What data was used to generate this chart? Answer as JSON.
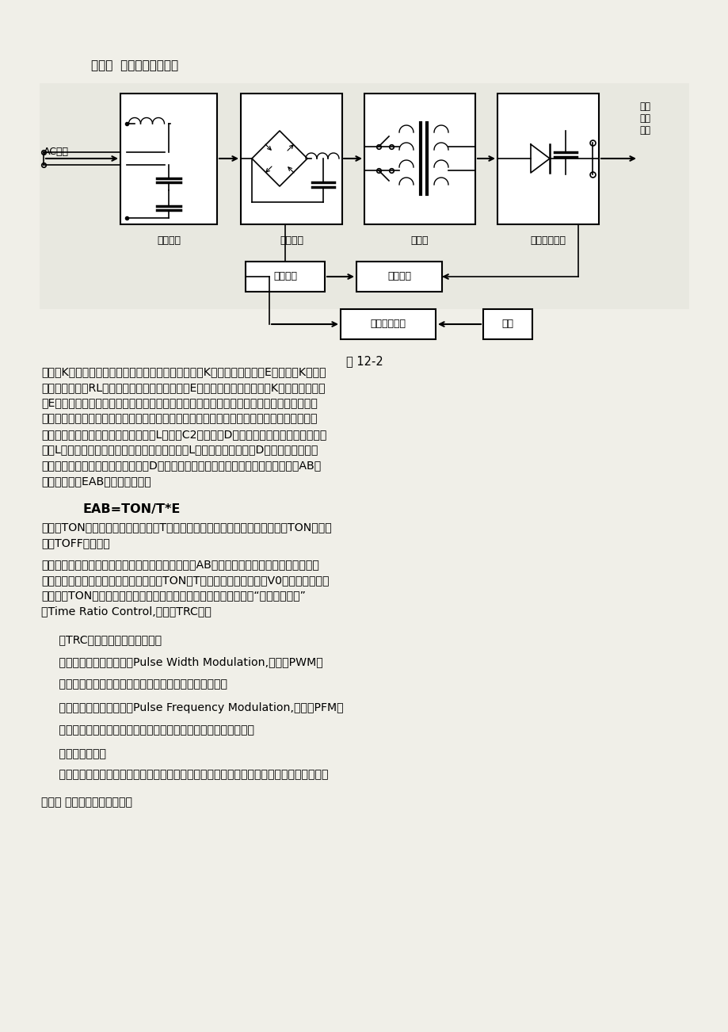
{
  "page_bg": "#f5f5f0",
  "title": "第二节  开关控制稳压原理",
  "figure_label": "图 12-2",
  "formula_text": "EAB=TON/T*E",
  "trc_intro": "     按TRC控制原理，有三种方式：",
  "item1_title": "     （一）、脉冲宽度调制（Pulse Width Modulation,缩写为PWM）",
  "item1_desc": "     开关周期恒定，通过改变脉冲宽度来改变占空比的方式。",
  "item2_title": "     （二）、脉冲频率调制（Pulse Frequency Modulation,缩写为PFM）",
  "item2_desc": "     导通脉冲宽度恒定，通过改变开关工作频率来改变占空比的方式。",
  "item3_title": "     （三）混合调制",
  "item3_desc": "     导通脉冲宽度和开关工作频率均不固定，彼此都能改变的方式，它是以上二种方式的混合。",
  "last_line": "第三节 开关电源的发展和趋势",
  "box_labels": [
    "输入滤波",
    "整流滤波",
    "逆　变",
    "输出整流滤波"
  ],
  "box2_labels": [
    "辅助电源",
    "控制电路"
  ],
  "box3_labels": [
    "保护动作电路",
    "检测"
  ],
  "ac_label": "AC市电",
  "output_label": "输出\n直流\n滤波"
}
